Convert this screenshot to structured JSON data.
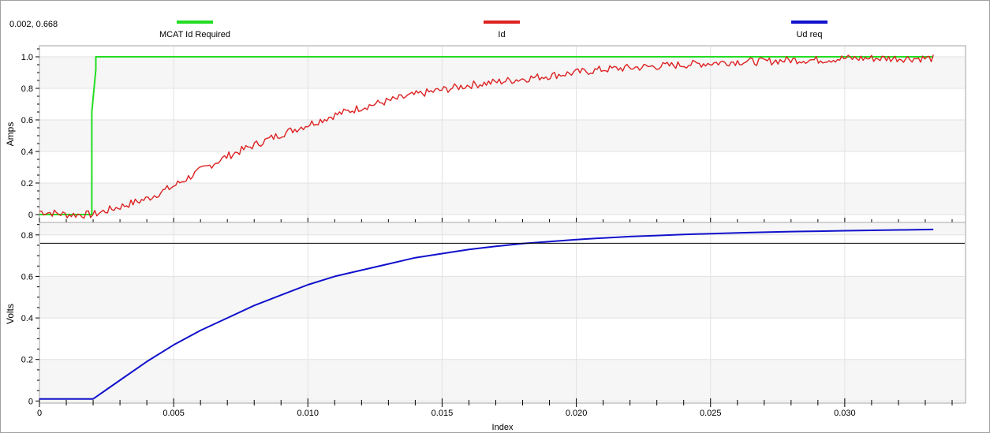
{
  "cursor_readout": "0.002, 0.668",
  "legend": [
    {
      "label": "MCAT Id Required",
      "color": "#22dd22"
    },
    {
      "label": "Id",
      "color": "#dd2222"
    },
    {
      "label": "Ud req",
      "color": "#1111cc"
    }
  ],
  "colors": {
    "grid": "#e2e2e2",
    "band": "#f6f6f6",
    "cursor_line": "#000000"
  },
  "chart_data": [
    {
      "type": "line",
      "ylabel": "Amps",
      "xlim": [
        0,
        0.0345
      ],
      "ylim": [
        -0.05,
        1.07
      ],
      "yticks": [
        0,
        0.2,
        0.4,
        0.6,
        0.8,
        1.0
      ],
      "yticklabels": [
        "0",
        "0.2",
        "0.4",
        "0.6",
        "0.8",
        "1.0"
      ],
      "grid": true,
      "series": [
        {
          "name": "MCAT Id Required",
          "color": "#22dd22",
          "x": [
            0,
            0.00195,
            0.00195,
            0.0021,
            0.0021,
            0.0333
          ],
          "y": [
            0,
            0,
            0.65,
            0.92,
            1.0,
            1.0
          ]
        },
        {
          "name": "Id",
          "color": "#dd2222",
          "x": [
            0,
            0.001,
            0.002,
            0.003,
            0.004,
            0.005,
            0.006,
            0.007,
            0.008,
            0.009,
            0.01,
            0.011,
            0.012,
            0.013,
            0.014,
            0.015,
            0.016,
            0.017,
            0.018,
            0.019,
            0.02,
            0.021,
            0.022,
            0.023,
            0.024,
            0.025,
            0.026,
            0.027,
            0.028,
            0.029,
            0.03,
            0.031,
            0.032,
            0.0333
          ],
          "y": [
            0.02,
            0.0,
            0.0,
            0.05,
            0.1,
            0.18,
            0.28,
            0.37,
            0.44,
            0.51,
            0.57,
            0.63,
            0.68,
            0.72,
            0.76,
            0.79,
            0.82,
            0.84,
            0.86,
            0.88,
            0.9,
            0.92,
            0.93,
            0.94,
            0.95,
            0.96,
            0.97,
            0.97,
            0.98,
            0.98,
            0.99,
            0.99,
            0.99,
            0.99
          ]
        }
      ]
    },
    {
      "type": "line",
      "xlabel": "Index",
      "ylabel": "Volts",
      "xlim": [
        0,
        0.0345
      ],
      "ylim": [
        -0.01,
        0.86
      ],
      "yticks": [
        0,
        0.2,
        0.4,
        0.6,
        0.8
      ],
      "yticklabels": [
        "0",
        "0.2",
        "0.4",
        "0.6",
        "0.8"
      ],
      "xticks": [
        0,
        0.005,
        0.01,
        0.015,
        0.02,
        0.025,
        0.03
      ],
      "xticklabels": [
        "0",
        "0.005",
        "0.010",
        "0.015",
        "0.020",
        "0.025",
        "0.030"
      ],
      "grid": true,
      "cursor_hline": 0.76,
      "series": [
        {
          "name": "Ud req",
          "color": "#1111cc",
          "x": [
            0,
            0.002,
            0.003,
            0.004,
            0.005,
            0.006,
            0.007,
            0.008,
            0.009,
            0.01,
            0.011,
            0.012,
            0.013,
            0.014,
            0.015,
            0.016,
            0.017,
            0.018,
            0.019,
            0.02,
            0.021,
            0.022,
            0.023,
            0.024,
            0.025,
            0.026,
            0.027,
            0.028,
            0.029,
            0.03,
            0.031,
            0.032,
            0.0333
          ],
          "y": [
            0.01,
            0.01,
            0.1,
            0.19,
            0.27,
            0.34,
            0.4,
            0.46,
            0.51,
            0.56,
            0.6,
            0.63,
            0.66,
            0.69,
            0.71,
            0.73,
            0.745,
            0.758,
            0.768,
            0.777,
            0.785,
            0.792,
            0.797,
            0.802,
            0.806,
            0.81,
            0.813,
            0.816,
            0.818,
            0.82,
            0.822,
            0.824,
            0.826
          ]
        }
      ]
    }
  ]
}
